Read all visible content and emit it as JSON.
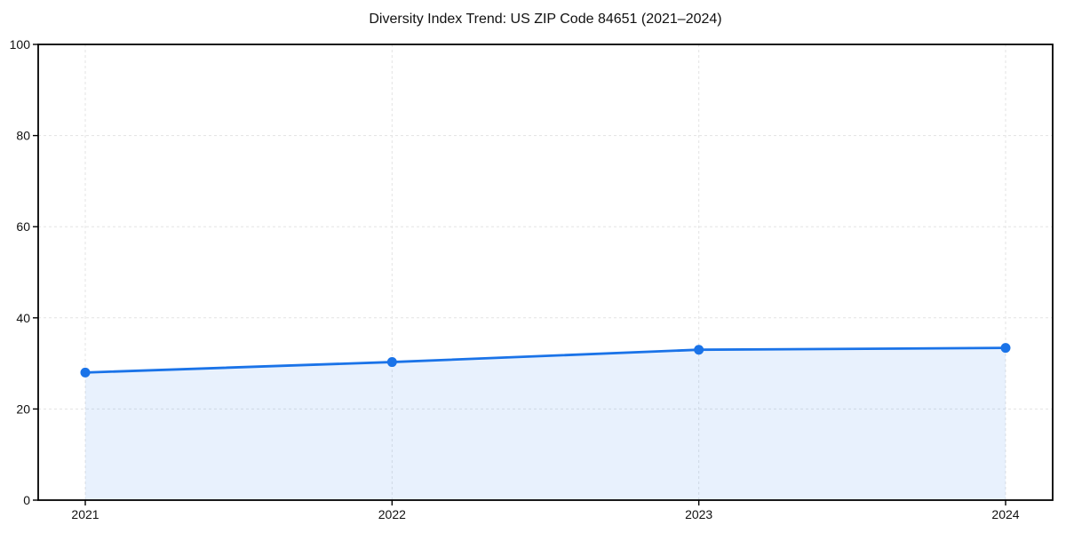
{
  "chart_data": {
    "type": "line",
    "title": "Diversity Index Trend: US ZIP Code 84651 (2021–2024)",
    "categories": [
      "2021",
      "2022",
      "2023",
      "2024"
    ],
    "series": [
      {
        "name": "Diversity Index",
        "values": [
          28.0,
          30.3,
          33.0,
          33.4
        ]
      }
    ],
    "xlabel": "",
    "ylabel": "",
    "ylim": [
      0,
      100
    ],
    "yticks": [
      0,
      20,
      40,
      60,
      80,
      100
    ],
    "grid": true,
    "grid_style": "dashed",
    "legend": false,
    "area_fill": true,
    "marker": "circle",
    "colors": {
      "line": "#1a73e8",
      "area_opacity": 0.1,
      "grid": "#e3e3e3",
      "axis": "#000000",
      "tick_text": "#111111",
      "background": "#ffffff"
    }
  }
}
